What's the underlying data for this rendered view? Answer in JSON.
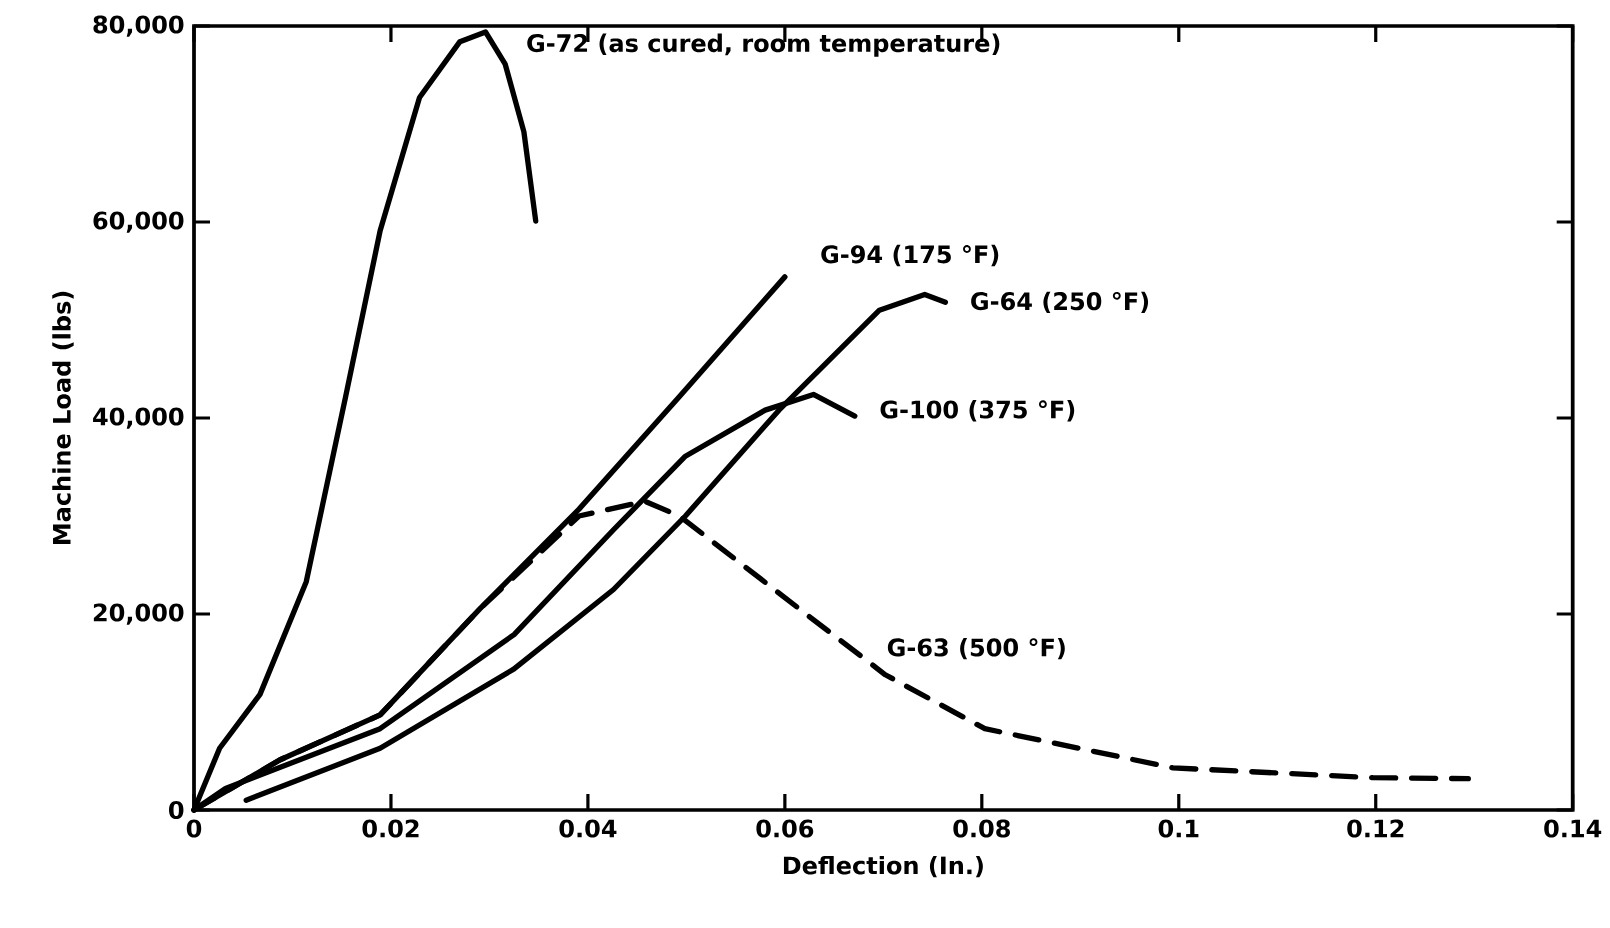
{
  "chart_data": {
    "type": "line",
    "xlabel": "Deflection (In.)",
    "ylabel": "Machine Load (lbs)",
    "xlim": [
      0,
      0.14
    ],
    "ylim": [
      0,
      80000
    ],
    "xticks": [
      0,
      0.02,
      0.04,
      0.06,
      0.08,
      0.1,
      0.12,
      0.14
    ],
    "yticks": [
      0,
      {
        "value": 20000,
        "label": "20,000"
      },
      {
        "value": 40000,
        "label": "40,000"
      },
      {
        "value": 60000,
        "label": "60,000"
      },
      {
        "value": 80000,
        "label": "80,000"
      }
    ],
    "marker": "none",
    "series": [
      {
        "name": "G-72 (as cured, room temperature)",
        "color": "#000000",
        "line_style": "solid",
        "x": [
          0,
          0.0026,
          0.0067,
          0.0114,
          0.0154,
          0.0189,
          0.0229,
          0.027,
          0.0296,
          0.0316,
          0.0335,
          0.0347
        ],
        "values": [
          0,
          6300,
          11800,
          23300,
          42200,
          59100,
          72700,
          78400,
          79400,
          76100,
          69200,
          60100
        ]
      },
      {
        "name": "G-94 (175 °F)",
        "color": "#000000",
        "line_style": "solid",
        "x": [
          0,
          0.0087,
          0.0189,
          0.029,
          0.0391,
          0.0493,
          0.06
        ],
        "values": [
          0,
          5100,
          9700,
          20500,
          30700,
          42200,
          54400
        ]
      },
      {
        "name": "G-64 (250 °F)",
        "color": "#000000",
        "line_style": "solid",
        "x": [
          0.0053,
          0.0189,
          0.0325,
          0.0426,
          0.0499,
          0.0594,
          0.0696,
          0.0742,
          0.0763
        ],
        "values": [
          1000,
          6300,
          14400,
          22500,
          30000,
          40800,
          51000,
          52600,
          51800
        ]
      },
      {
        "name": "G-100 (375 °F)",
        "color": "#000000",
        "line_style": "solid",
        "x": [
          0,
          0.0032,
          0.0189,
          0.0325,
          0.0426,
          0.0499,
          0.058,
          0.0629,
          0.0671
        ],
        "values": [
          0,
          2200,
          8300,
          17900,
          28600,
          36100,
          40800,
          42400,
          40200
        ]
      },
      {
        "name": "G-63 (500 °F)",
        "color": "#000000",
        "line_style": "dashed",
        "x": [
          0,
          0.0087,
          0.0189,
          0.029,
          0.0391,
          0.0458,
          0.0493,
          0.0615,
          0.0702,
          0.0803,
          0.0994,
          0.1197,
          0.1294
        ],
        "values": [
          0,
          5100,
          9700,
          20500,
          30000,
          31500,
          30000,
          20500,
          13800,
          8300,
          4300,
          3300,
          3200
        ]
      }
    ]
  }
}
